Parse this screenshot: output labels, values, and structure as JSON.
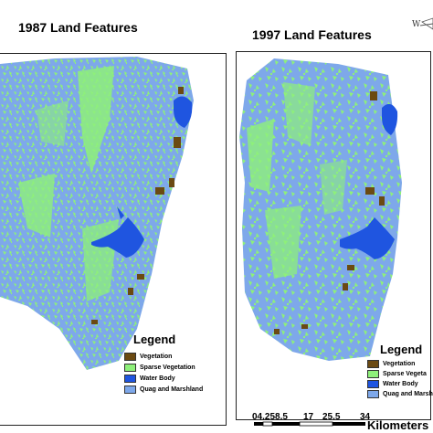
{
  "left_map": {
    "title": "1987 Land Features",
    "legend_title": "Legend",
    "legend": [
      {
        "label": "Vegetation",
        "color": "#6b4a12"
      },
      {
        "label": "Sparse Vegetation",
        "color": "#8ef07a"
      },
      {
        "label": "Water Body",
        "color": "#1f55e0"
      },
      {
        "label": "Quag and Marshland",
        "color": "#7ea8ea"
      }
    ]
  },
  "right_map": {
    "title": "1997 Land Features",
    "legend_title": "Legend",
    "legend": [
      {
        "label": "Vegetation",
        "color": "#6b4a12"
      },
      {
        "label": "Sparse Vegeta",
        "color": "#8ef07a"
      },
      {
        "label": "Water Body",
        "color": "#1f55e0"
      },
      {
        "label": "Quag and Marsh",
        "color": "#7ea8ea"
      }
    ],
    "north_arrow_label": "W"
  },
  "scale_bar": {
    "ticks": [
      "04.258.5",
      "17",
      "25.5",
      "34"
    ],
    "unit": "Kilometers"
  }
}
